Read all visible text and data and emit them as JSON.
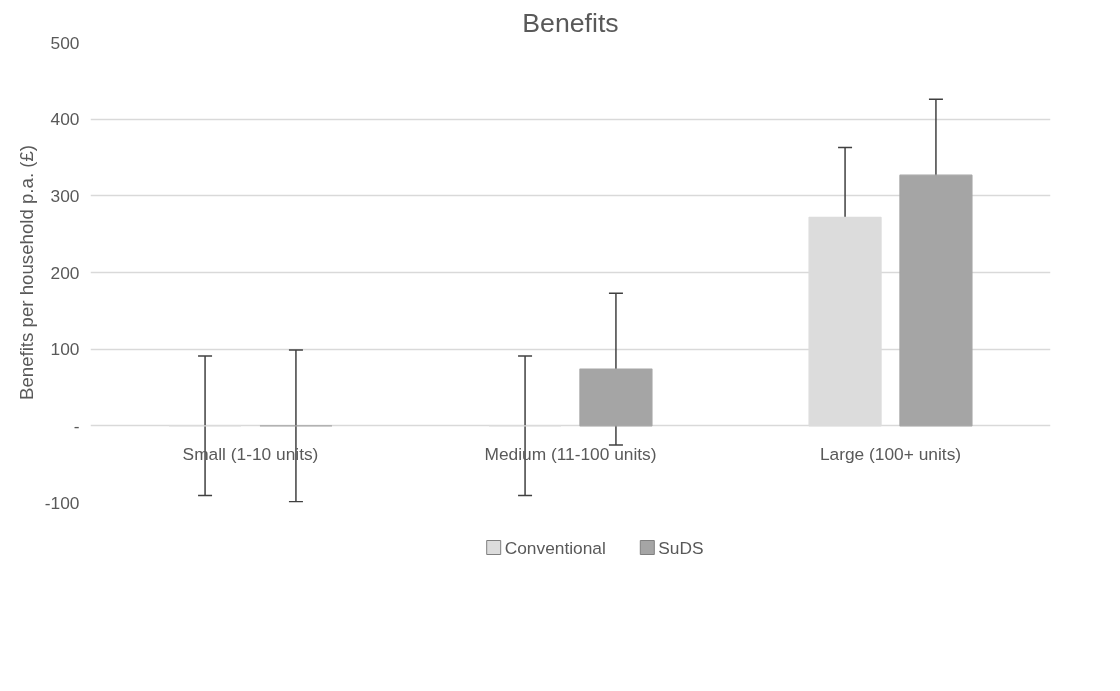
{
  "chart_data": {
    "type": "bar",
    "title": "Benefits",
    "ylabel": "Benefits per household p.a. (£)",
    "categories": [
      "Small (1-10 units)",
      "Medium (11-100 units)",
      "Large (100+ units)"
    ],
    "series": [
      {
        "name": "Conventional",
        "color": "#dcdcdc",
        "values": [
          0,
          0,
          272
        ],
        "errors": [
          91,
          91,
          91
        ]
      },
      {
        "name": "SuDS",
        "color": "#a5a5a5",
        "values": [
          0,
          74,
          327
        ],
        "errors": [
          99,
          99,
          99
        ]
      }
    ],
    "ylim": [
      -100,
      500
    ],
    "yticks": [
      {
        "value": -100,
        "label": "-100"
      },
      {
        "value": 0,
        "label": "-"
      },
      100,
      200,
      300,
      400,
      500
    ],
    "grid": "y",
    "legend": "bottom"
  }
}
